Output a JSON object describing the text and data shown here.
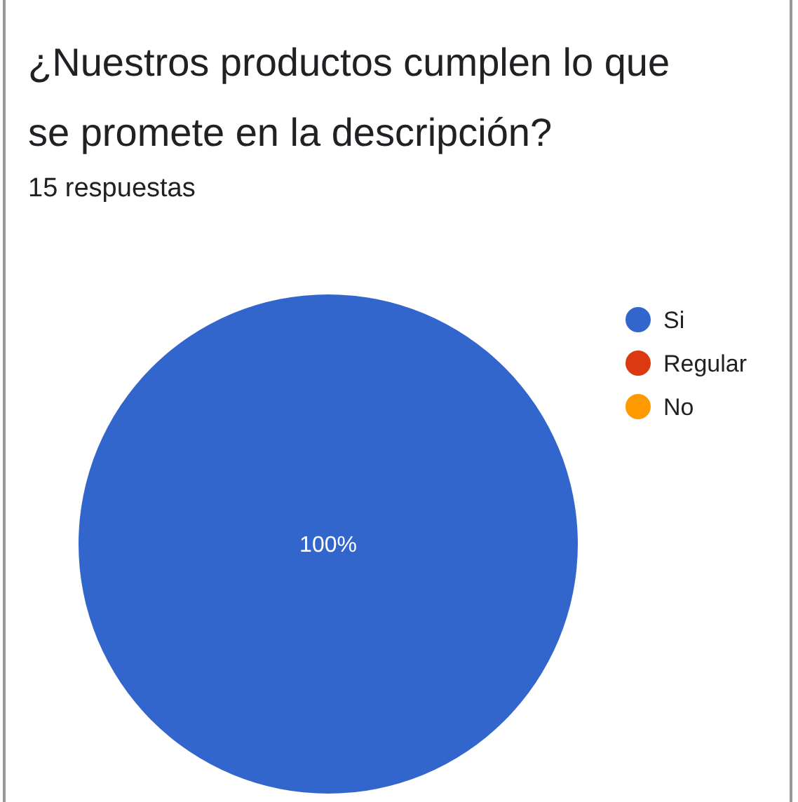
{
  "chart_data": {
    "type": "pie",
    "title": "¿Nuestros productos cumplen lo que se promete en la descripción?",
    "subtitle": "15 respuestas",
    "categories": [
      "Si",
      "Regular",
      "No"
    ],
    "values": [
      100,
      0,
      0
    ],
    "colors": [
      "#3366cc",
      "#dc3912",
      "#ff9900"
    ],
    "value_labels": [
      "100%",
      null,
      null
    ],
    "legend": "right"
  }
}
